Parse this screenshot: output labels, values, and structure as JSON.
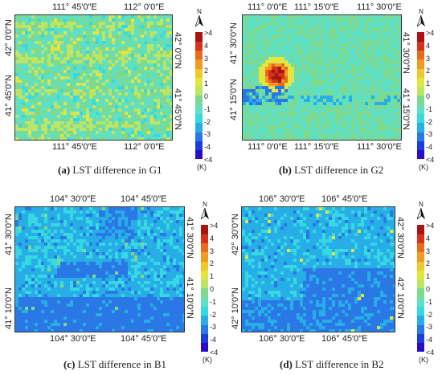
{
  "palette": [
    "#2a0cc8",
    "#1e3cdc",
    "#2a78e6",
    "#27aee6",
    "#36d8e2",
    "#5fe0c4",
    "#7ed98d",
    "#bde565",
    "#e4e640",
    "#f0c82a",
    "#f09a20",
    "#e86a1c",
    "#d6331a",
    "#a81414"
  ],
  "legend": {
    "labels": [
      ">4",
      "4",
      "3",
      "2",
      "1",
      "0",
      "-1",
      "-2",
      "-3",
      "-4",
      "<4"
    ],
    "unit": "(K)",
    "north": "N"
  },
  "panels": [
    {
      "id": "g1",
      "caption_letter": "(a)",
      "caption_text": " LST difference in G1",
      "top_ticks": [
        "111° 45′0″E",
        "112° 0′0″E"
      ],
      "bottom_ticks": [
        "111° 45′0″E",
        "112° 0′0″E"
      ],
      "left_ticks": [
        "42° 0′0″N",
        "41° 45′0″N"
      ],
      "right_ticks": [
        "42° 0′0″N",
        "41° 45′0″N"
      ],
      "theme": "green"
    },
    {
      "id": "g2",
      "caption_letter": "(b)",
      "caption_text": " LST difference in G2",
      "top_ticks": [
        "111° 0′0″E",
        "111° 15′0″E",
        "111° 30′0″E"
      ],
      "bottom_ticks": [
        "111° 0′0″E",
        "111° 15′0″E",
        "111° 30′0″E"
      ],
      "left_ticks": [
        "41° 30′0″N",
        "41° 15′0″N"
      ],
      "right_ticks": [
        "41° 30′0″N",
        "41° 15′0″N"
      ],
      "theme": "green-hot"
    },
    {
      "id": "b1",
      "caption_letter": "(c)",
      "caption_text": " LST difference in B1",
      "top_ticks": [
        "104° 30′0″E",
        "104° 45′0″E"
      ],
      "bottom_ticks": [
        "104° 30′0″E",
        "104° 45′0″E"
      ],
      "left_ticks": [
        "41° 30′0″N",
        "41° 10′0″N"
      ],
      "right_ticks": [
        "41° 30′0″N",
        "41° 10′0″N"
      ],
      "theme": "blue"
    },
    {
      "id": "b2",
      "caption_letter": "(d)",
      "caption_text": " LST difference in B2",
      "top_ticks": [
        "106° 30′0″E",
        "106° 45′0″E"
      ],
      "bottom_ticks": [
        "106° 30′0″E",
        "106° 45′0″E"
      ],
      "left_ticks": [
        "42° 30′0″N",
        "42° 10′0″N"
      ],
      "right_ticks": [
        "42° 30′0″N",
        "42° 10′0″N"
      ],
      "theme": "blue2"
    }
  ]
}
